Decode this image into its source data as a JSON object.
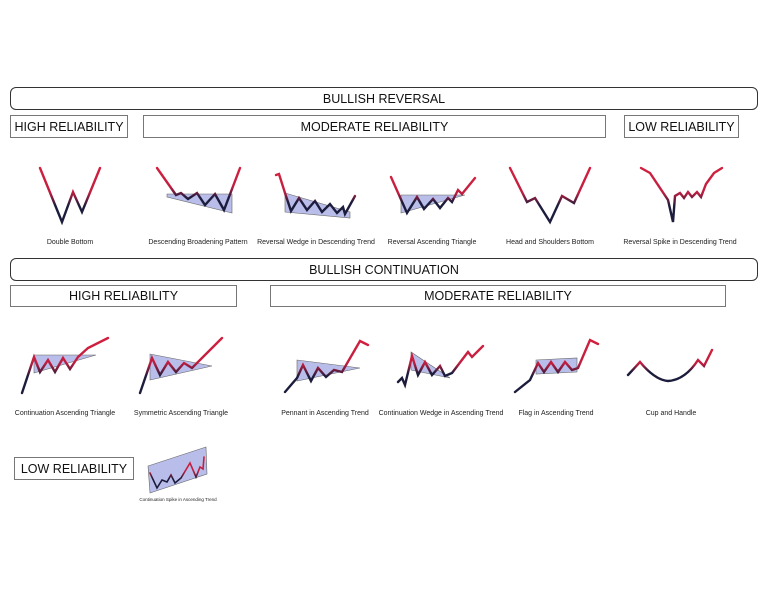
{
  "reversal": {
    "title": "BULLISH REVERSAL",
    "high": "HIGH RELIABILITY",
    "moderate": "MODERATE RELIABILITY",
    "low": "LOW RELIABILITY",
    "patterns": [
      "Double Bottom",
      "Descending Broadening Pattern",
      "Reversal Wedge in Descending Trend",
      "Reversal Ascending Triangle",
      "Head and Shoulders Bottom",
      "Reversal Spike in Descending Trend"
    ]
  },
  "continuation": {
    "title": "BULLISH CONTINUATION",
    "high": "HIGH RELIABILITY",
    "moderate": "MODERATE RELIABILITY",
    "low": "LOW RELIABILITY",
    "patterns": [
      "Continuation Ascending Triangle",
      "Symmetric Ascending Triangle",
      "Pennant in Ascending Trend",
      "Continuation Wedge in Ascending Trend",
      "Flag in Ascending Trend",
      "Cup and Handle",
      "Continuation Spike in Ascending Trend"
    ]
  },
  "colors": {
    "up": "#d2203f",
    "down": "#1c1c3c",
    "area": "#b9bde9"
  }
}
